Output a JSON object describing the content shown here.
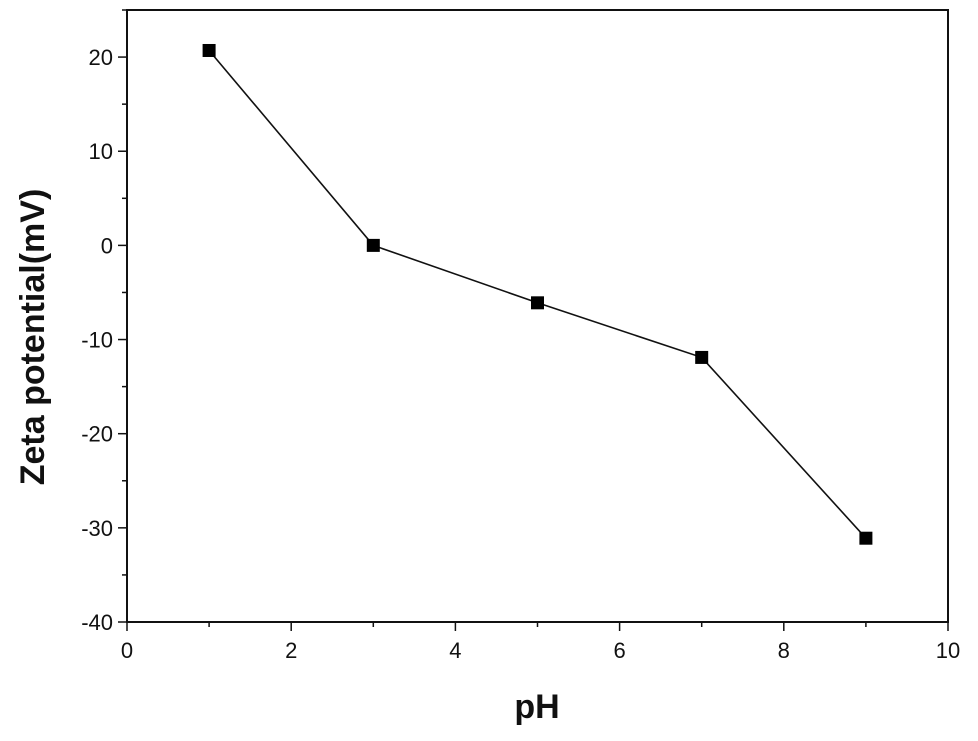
{
  "chart_data": {
    "type": "line",
    "xlabel": "pH",
    "ylabel": "Zeta potential(mV)",
    "xlim": [
      0,
      10
    ],
    "ylim": [
      -40,
      25
    ],
    "x_ticks": [
      0,
      2,
      4,
      6,
      8,
      10
    ],
    "y_ticks": [
      -40,
      -30,
      -20,
      -10,
      0,
      10,
      20
    ],
    "x_minor_step": 1,
    "y_minor_step": 5,
    "grid": false,
    "series": [
      {
        "marker": "square",
        "color": "#000000",
        "x": [
          1,
          3,
          5,
          7,
          9
        ],
        "y": [
          20.7,
          0,
          -6.1,
          -11.9,
          -31.1
        ]
      }
    ]
  }
}
